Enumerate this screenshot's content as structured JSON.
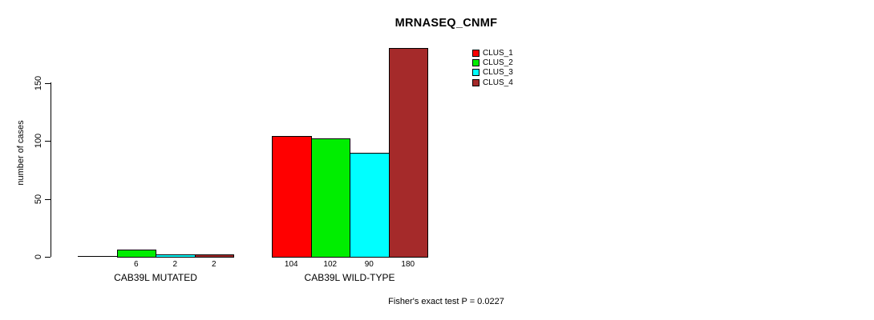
{
  "chart_data": {
    "type": "bar",
    "title": "MRNASEQ_CNMF",
    "ylabel": "number of cases",
    "xlabel": "",
    "annotation": "Fisher's exact test P = 0.0227",
    "categories": [
      "CAB39L MUTATED",
      "CAB39L WILD-TYPE"
    ],
    "series": [
      {
        "name": "CLUS_1",
        "color": "#ff0000",
        "values": [
          0,
          104
        ]
      },
      {
        "name": "CLUS_2",
        "color": "#00ee00",
        "values": [
          6,
          102
        ]
      },
      {
        "name": "CLUS_3",
        "color": "#00ffff",
        "values": [
          2,
          90
        ]
      },
      {
        "name": "CLUS_4",
        "color": "#a52a2a",
        "values": [
          2,
          180
        ]
      }
    ],
    "yticks": [
      0,
      50,
      100,
      150
    ],
    "ylim": [
      0,
      186
    ],
    "grid": false,
    "legend_position": "top-right",
    "legend_border": false,
    "bar_value_labels_shown": [
      "6",
      "2",
      "2",
      "104",
      "102",
      "90",
      "180"
    ],
    "zero_value_label_hidden": true
  }
}
